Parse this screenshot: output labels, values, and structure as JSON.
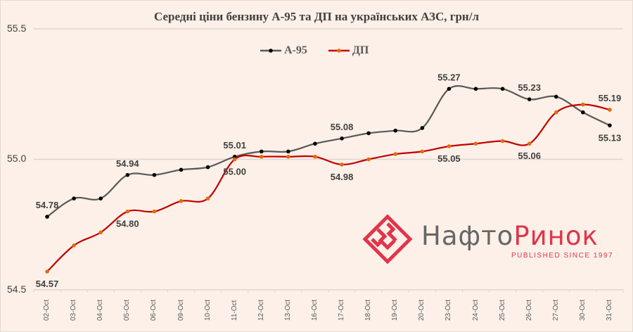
{
  "chart_data": {
    "type": "line",
    "title": "Середні ціни бензину А-95 та ДП на українських АЗС, грн/л",
    "xlabel": "",
    "ylabel": "",
    "ylim": [
      54.5,
      55.5
    ],
    "yticks": [
      "54.5",
      "55.0",
      "55.5"
    ],
    "grid": true,
    "legend_position": "top-center",
    "categories": [
      "02-Oct",
      "03-Oct",
      "04-Oct",
      "05-Oct",
      "06-Oct",
      "09-Oct",
      "10-Oct",
      "11-Oct",
      "12-Oct",
      "13-Oct",
      "16-Oct",
      "17-Oct",
      "18-Oct",
      "19-Oct",
      "20-Oct",
      "23-Oct",
      "24-Oct",
      "25-Oct",
      "26-Oct",
      "27-Oct",
      "30-Oct",
      "31-Oct"
    ],
    "series": [
      {
        "name": "А-95",
        "color": "#595959",
        "marker_color": "#000000",
        "values": [
          54.78,
          54.85,
          54.85,
          54.94,
          54.94,
          54.96,
          54.97,
          55.01,
          55.03,
          55.03,
          55.06,
          55.08,
          55.1,
          55.11,
          55.12,
          55.27,
          55.27,
          55.27,
          55.23,
          55.24,
          55.18,
          55.13
        ],
        "labels": [
          {
            "index": 0,
            "text": "54.78",
            "pos": "above"
          },
          {
            "index": 3,
            "text": "54.94",
            "pos": "above"
          },
          {
            "index": 7,
            "text": "55.01",
            "pos": "above"
          },
          {
            "index": 11,
            "text": "55.08",
            "pos": "above"
          },
          {
            "index": 15,
            "text": "55.27",
            "pos": "above"
          },
          {
            "index": 18,
            "text": "55.23",
            "pos": "above"
          },
          {
            "index": 21,
            "text": "55.13",
            "pos": "below"
          }
        ]
      },
      {
        "name": "ДП",
        "color": "#c00000",
        "marker_color": "#e46c0a",
        "values": [
          54.57,
          54.67,
          54.72,
          54.8,
          54.8,
          54.84,
          54.85,
          55.0,
          55.01,
          55.01,
          55.01,
          54.98,
          55.0,
          55.02,
          55.03,
          55.05,
          55.06,
          55.07,
          55.06,
          55.18,
          55.21,
          55.19
        ],
        "labels": [
          {
            "index": 0,
            "text": "54.57",
            "pos": "below"
          },
          {
            "index": 3,
            "text": "54.80",
            "pos": "below"
          },
          {
            "index": 7,
            "text": "55.00",
            "pos": "below"
          },
          {
            "index": 11,
            "text": "54.98",
            "pos": "below"
          },
          {
            "index": 15,
            "text": "55.05",
            "pos": "below"
          },
          {
            "index": 18,
            "text": "55.06",
            "pos": "below"
          },
          {
            "index": 21,
            "text": "55.19",
            "pos": "above"
          }
        ]
      }
    ]
  },
  "logo": {
    "name_part1": "Нафто",
    "name_part2": "Ринок",
    "tagline": "PUBLISHED SINCE 1997"
  }
}
